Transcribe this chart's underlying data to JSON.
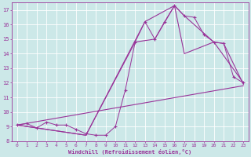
{
  "xlabel": "Windchill (Refroidissement éolien,°C)",
  "xlim": [
    -0.5,
    23.5
  ],
  "ylim": [
    8,
    17.5
  ],
  "xticks": [
    0,
    1,
    2,
    3,
    4,
    5,
    6,
    7,
    8,
    9,
    10,
    11,
    12,
    13,
    14,
    15,
    16,
    17,
    18,
    19,
    20,
    21,
    22,
    23
  ],
  "yticks": [
    8,
    9,
    10,
    11,
    12,
    13,
    14,
    15,
    16,
    17
  ],
  "color": "#993399",
  "bg_color": "#cce8e8",
  "grid_color": "#b0d8d8",
  "series": [
    {
      "x": [
        0,
        1,
        2,
        3,
        4,
        5,
        6,
        7,
        8,
        9,
        10,
        11,
        12,
        13,
        14,
        15,
        16,
        17,
        18,
        19,
        20,
        21,
        22,
        23
      ],
      "y": [
        9.1,
        9.2,
        8.9,
        9.3,
        9.1,
        9.1,
        8.8,
        8.5,
        8.4,
        8.4,
        9.0,
        11.5,
        14.8,
        16.2,
        15.0,
        16.2,
        17.3,
        16.6,
        16.5,
        15.3,
        14.8,
        14.7,
        12.4,
        12.0
      ],
      "has_marker": true
    },
    {
      "x": [
        0,
        7,
        12,
        14,
        16,
        17,
        20,
        23
      ],
      "y": [
        9.1,
        8.4,
        14.8,
        15.0,
        17.3,
        14.0,
        14.8,
        12.0
      ],
      "has_marker": false
    },
    {
      "x": [
        0,
        7,
        13,
        16,
        17,
        20,
        21,
        23
      ],
      "y": [
        9.1,
        8.4,
        16.2,
        17.3,
        16.6,
        14.8,
        14.7,
        11.9
      ],
      "has_marker": false
    },
    {
      "x": [
        0,
        23
      ],
      "y": [
        9.1,
        11.8
      ],
      "has_marker": false
    }
  ]
}
